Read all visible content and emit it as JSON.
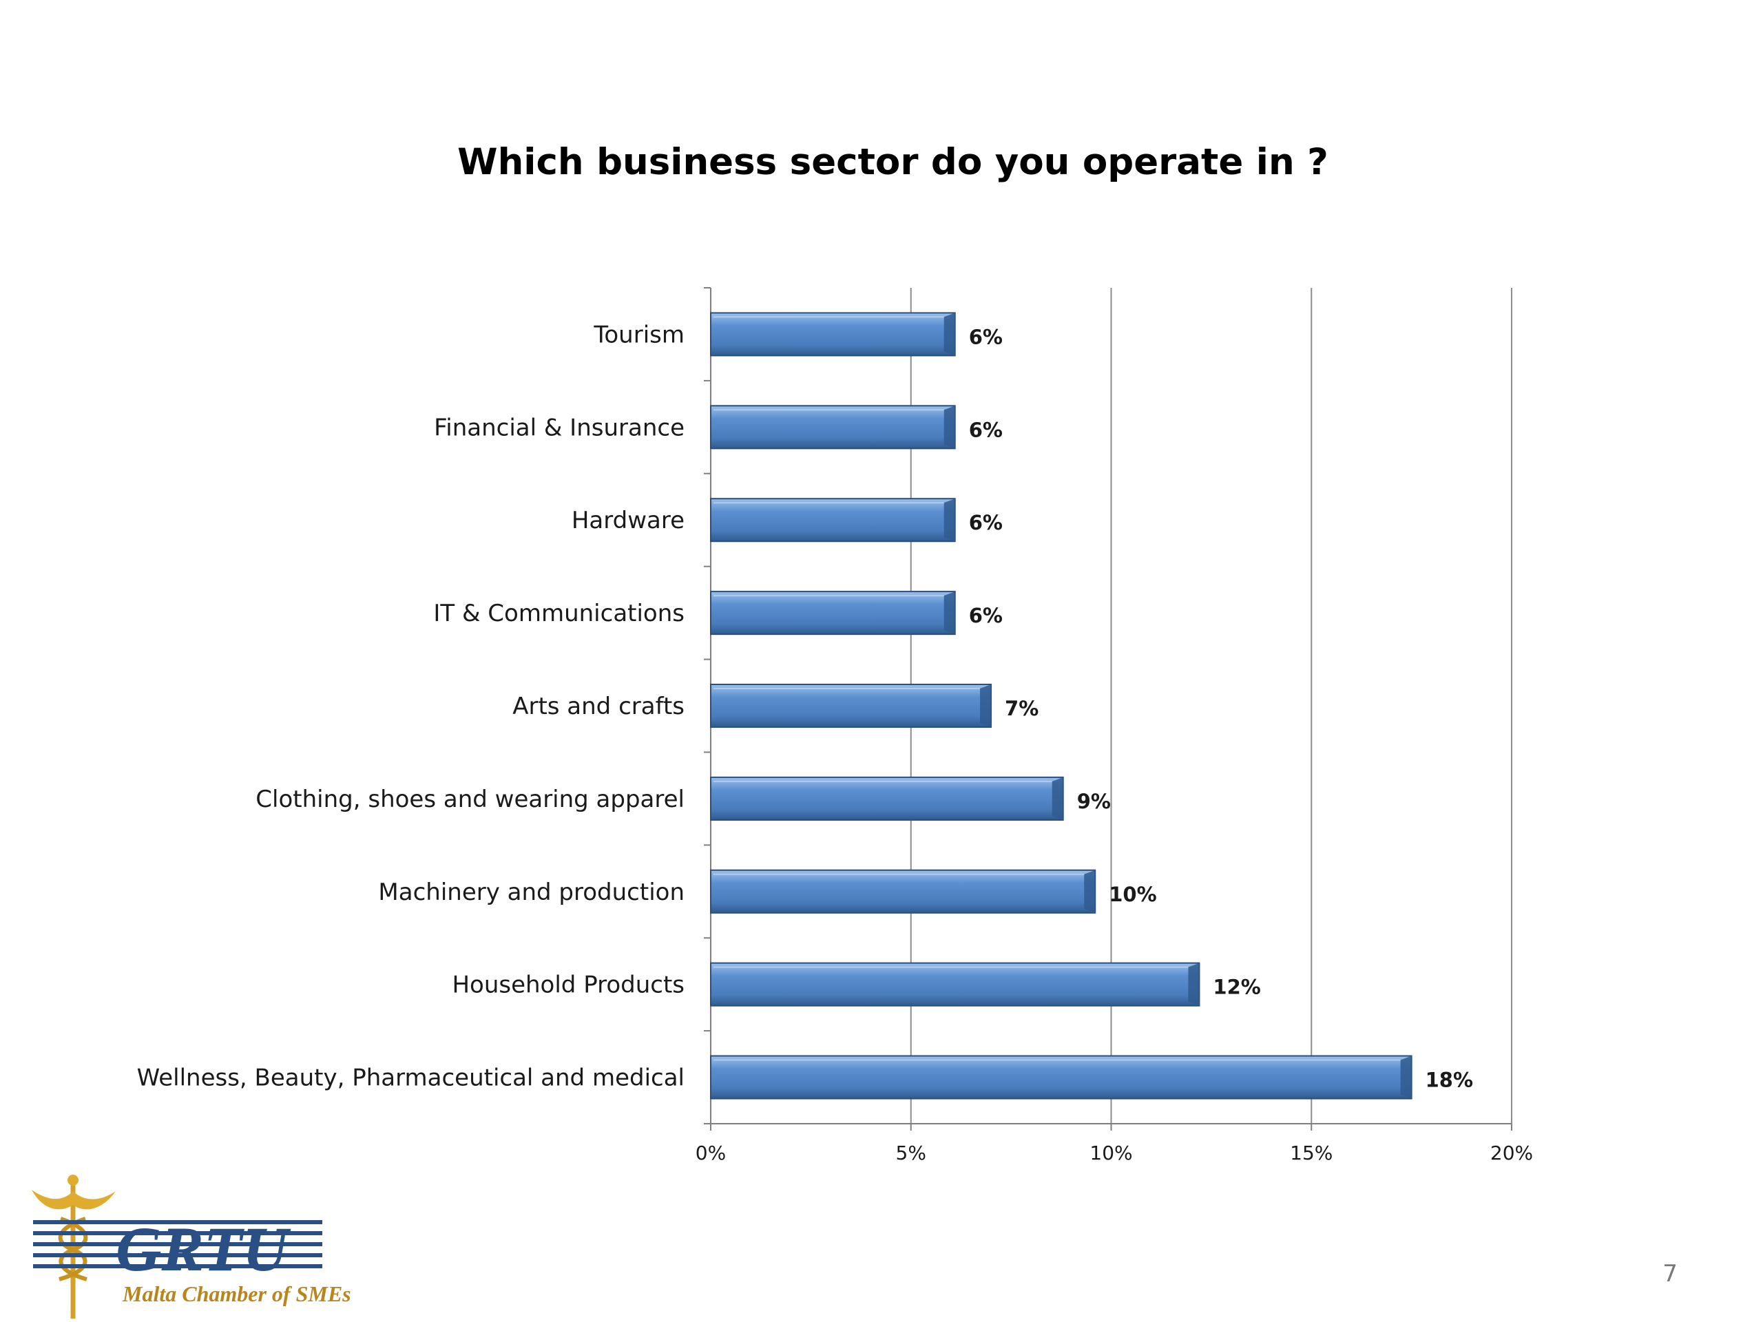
{
  "slide": {
    "title": "Which business sector do you operate in ?",
    "page_number": "7"
  },
  "logo": {
    "name": "GRTU",
    "tagline": "Malta Chamber of SMEs"
  },
  "chart_data": {
    "type": "bar",
    "orientation": "horizontal",
    "title": "Which business sector do you operate in ?",
    "xlabel": "",
    "ylabel": "",
    "xlim": [
      0,
      20
    ],
    "x_ticks": [
      "0%",
      "5%",
      "10%",
      "15%",
      "20%"
    ],
    "grid": "vertical",
    "legend": "none",
    "categories": [
      "Tourism",
      "Financial & Insurance",
      "Hardware",
      "IT & Communications",
      "Arts and crafts",
      "Clothing, shoes and wearing apparel",
      "Machinery and production",
      "Household Products",
      "Wellness, Beauty, Pharmaceutical and medical"
    ],
    "values": [
      6.1,
      6.1,
      6.1,
      6.1,
      7.0,
      8.8,
      9.6,
      12.2,
      17.5
    ],
    "data_labels": [
      "6%",
      "6%",
      "6%",
      "6%",
      "7%",
      "9%",
      "10%",
      "12%",
      "18%"
    ],
    "colors": {
      "bar": "#4f81bd",
      "bar_dark": "#2f5b8f",
      "bar_light": "#8db3e2",
      "grid": "#8c8c8c"
    }
  }
}
